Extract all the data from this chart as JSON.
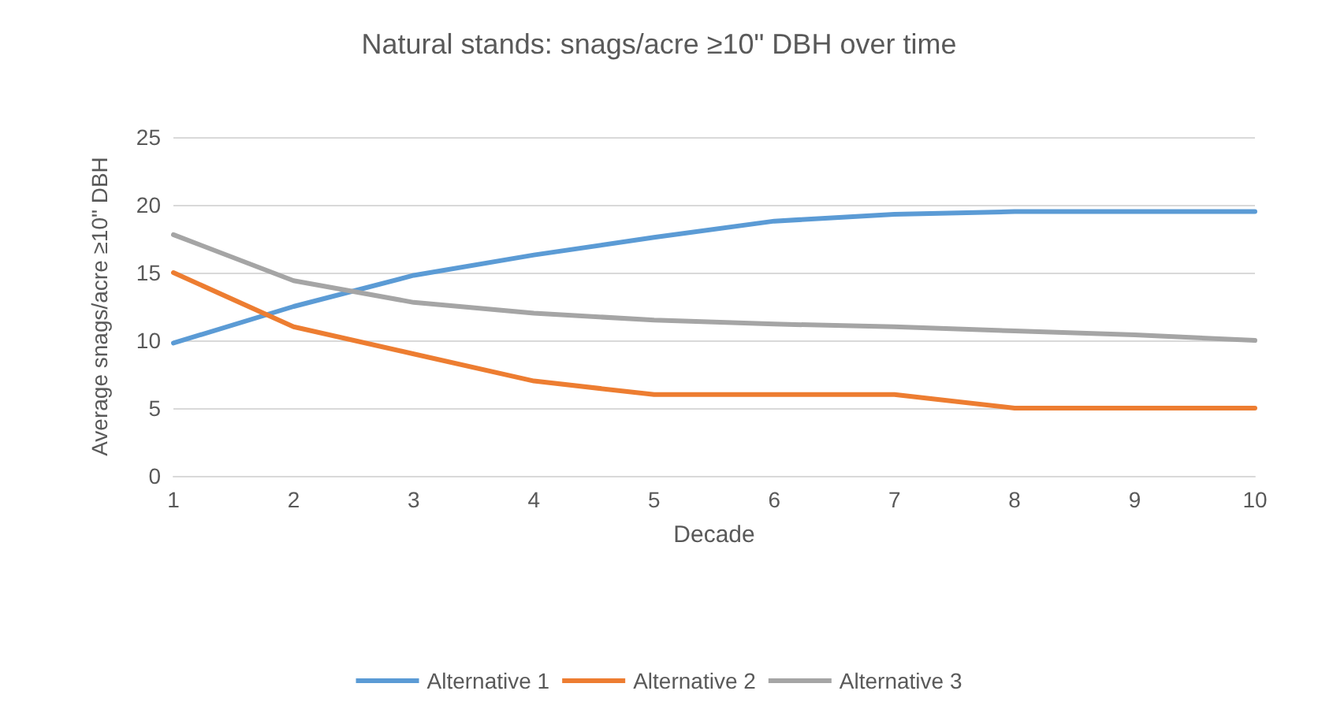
{
  "chart_data": {
    "type": "line",
    "title": "Natural stands: snags/acre ≥10\" DBH over time",
    "xlabel": "Decade",
    "ylabel": "Average snags/acre ≥10\" DBH",
    "categories": [
      "1",
      "2",
      "3",
      "4",
      "5",
      "6",
      "7",
      "8",
      "9",
      "10"
    ],
    "series": [
      {
        "name": "Alternative 1",
        "color": "#5b9bd5",
        "values": [
          9.8,
          12.5,
          14.8,
          16.3,
          17.6,
          18.8,
          19.3,
          19.5,
          19.5,
          19.5
        ]
      },
      {
        "name": "Alternative 2",
        "color": "#ed7d31",
        "values": [
          15,
          11,
          9,
          7,
          6,
          6,
          6,
          5,
          5,
          5
        ]
      },
      {
        "name": "Alternative 3",
        "color": "#a5a5a5",
        "values": [
          17.8,
          14.4,
          12.8,
          12,
          11.5,
          11.2,
          11,
          10.7,
          10.4,
          10
        ]
      }
    ],
    "ylim": [
      0,
      25
    ],
    "yticks": [
      0,
      5,
      10,
      15,
      20,
      25
    ],
    "grid": "y",
    "legend": "bottom",
    "marker": "none",
    "line_style": "solid"
  }
}
